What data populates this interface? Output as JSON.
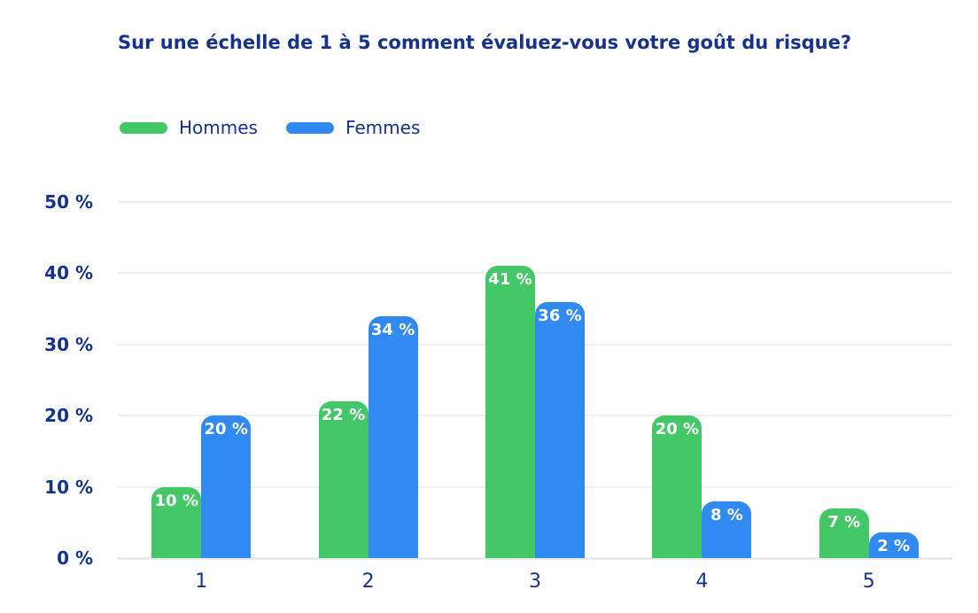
{
  "header": {
    "title": "Sur une échelle de 1 à 5 comment évaluez-vous votre goût du risque?"
  },
  "chart_data": {
    "type": "bar",
    "title": "Sur une échelle de 1 à 5 comment évaluez-vous votre goût du risque?",
    "categories": [
      "1",
      "2",
      "3",
      "4",
      "5"
    ],
    "series": [
      {
        "name": "Hommes",
        "color": "#44c767",
        "values": [
          10,
          22,
          41,
          20,
          7
        ]
      },
      {
        "name": "Femmes",
        "color": "#308af2",
        "values": [
          20,
          34,
          36,
          8,
          2
        ]
      }
    ],
    "value_suffix": " %",
    "y_ticks": [
      0,
      10,
      20,
      30,
      40,
      50
    ],
    "y_tick_suffix": " %",
    "ylim": [
      0,
      50
    ],
    "xlabel": "",
    "ylabel": "",
    "grid": "horizontal",
    "legend_position": "top-left",
    "colors": {
      "text": "#15328c",
      "gridline": "#edf0f3",
      "baseline": "#e6e9ee",
      "value_label": "#ffffff",
      "background": "#ffffff"
    }
  }
}
